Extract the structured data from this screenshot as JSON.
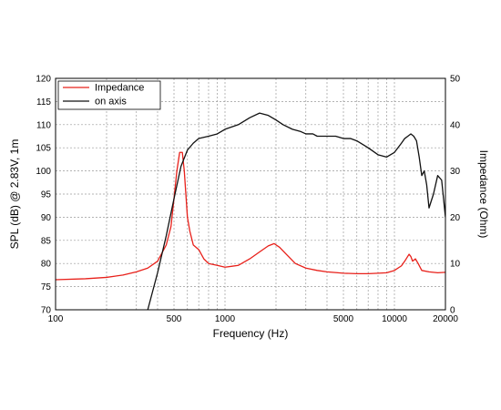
{
  "chart_data": {
    "type": "line",
    "xlabel": "Frequency (Hz)",
    "ylabel_left": "SPL (dB) @ 2.83V, 1m",
    "ylabel_right": "Impedance (Ohm)",
    "x_scale": "log",
    "xlim": [
      100,
      20000
    ],
    "ylim_left": [
      70,
      120
    ],
    "ylim_right": [
      0,
      50
    ],
    "grid": true,
    "legend_placement": "top-left",
    "x_ticks": [
      "100",
      "500",
      "1000",
      "5000",
      "10000",
      "20000"
    ],
    "x_tick_values": [
      100,
      500,
      1000,
      5000,
      10000,
      20000
    ],
    "y_ticks_left": [
      "70",
      "75",
      "80",
      "85",
      "90",
      "95",
      "100",
      "105",
      "110",
      "115",
      "120"
    ],
    "y_ticks_right": [
      "0",
      "10",
      "20",
      "30",
      "40",
      "50"
    ],
    "series": [
      {
        "name": "Impedance",
        "axis": "right",
        "color": "#e8201a",
        "x": [
          100,
          150,
          200,
          250,
          300,
          350,
          400,
          450,
          480,
          500,
          520,
          540,
          560,
          575,
          590,
          600,
          620,
          650,
          700,
          750,
          800,
          900,
          1000,
          1200,
          1400,
          1600,
          1800,
          1950,
          2100,
          2300,
          2600,
          3000,
          3500,
          4000,
          5000,
          6000,
          7000,
          8000,
          9000,
          10000,
          11000,
          11500,
          12200,
          12500,
          12800,
          13300,
          13800,
          14500,
          16000,
          18000,
          20000
        ],
        "y": [
          6.5,
          6.7,
          7.0,
          7.5,
          8.2,
          9.0,
          10.5,
          14.0,
          18.0,
          24.0,
          30.0,
          34.0,
          34.0,
          30.0,
          24.0,
          20.0,
          17.0,
          14.0,
          13.0,
          11.0,
          10.0,
          9.6,
          9.2,
          9.6,
          11.0,
          12.5,
          13.8,
          14.3,
          13.5,
          12.0,
          10.0,
          9.0,
          8.5,
          8.2,
          7.9,
          7.8,
          7.8,
          7.9,
          8.0,
          8.5,
          9.5,
          10.5,
          12.0,
          11.5,
          10.5,
          11.0,
          10.0,
          8.5,
          8.2,
          8.0,
          8.1
        ]
      },
      {
        "name": "on axis",
        "axis": "left",
        "color": "#111111",
        "x": [
          350,
          400,
          450,
          500,
          550,
          600,
          650,
          700,
          800,
          900,
          1000,
          1200,
          1400,
          1600,
          1800,
          2000,
          2200,
          2500,
          2800,
          3000,
          3300,
          3500,
          4000,
          4500,
          5000,
          5500,
          6000,
          7000,
          8000,
          9000,
          10000,
          11000,
          11500,
          12000,
          12500,
          13000,
          13500,
          14000,
          14500,
          15000,
          15500,
          16000,
          17000,
          18000,
          19000,
          20000
        ],
        "y": [
          70,
          78,
          86,
          94,
          101,
          104.5,
          106,
          107,
          107.5,
          108,
          109,
          110,
          111.5,
          112.5,
          112,
          111,
          110,
          109,
          108.5,
          108,
          108,
          107.5,
          107.5,
          107.5,
          107,
          107,
          106.5,
          105,
          103.5,
          103,
          104,
          106,
          107,
          107.5,
          108,
          107.5,
          106.5,
          103,
          99,
          100,
          97,
          92,
          95,
          99,
          98,
          90
        ]
      }
    ]
  }
}
